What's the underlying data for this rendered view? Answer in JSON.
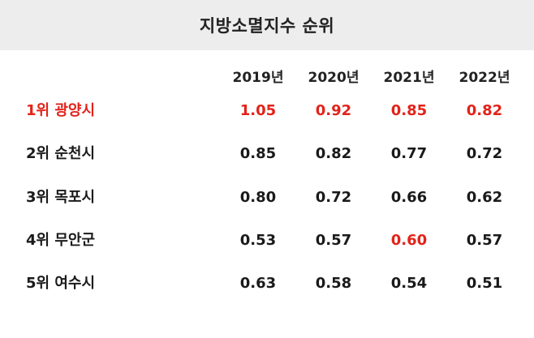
{
  "title": "지방소멸지수 순위",
  "colors": {
    "highlight": "#e2231a",
    "text": "#222222",
    "header_bg": "#ededed"
  },
  "columns": [
    "2019년",
    "2020년",
    "2021년",
    "2022년"
  ],
  "rows": [
    {
      "label": "1위 광양시",
      "values": [
        "1.05",
        "0.92",
        "0.85",
        "0.82"
      ],
      "label_highlight": true,
      "highlight": [
        true,
        true,
        true,
        true
      ]
    },
    {
      "label": "2위 순천시",
      "values": [
        "0.85",
        "0.82",
        "0.77",
        "0.72"
      ],
      "label_highlight": false,
      "highlight": [
        false,
        false,
        false,
        false
      ]
    },
    {
      "label": "3위 목포시",
      "values": [
        "0.80",
        "0.72",
        "0.66",
        "0.62"
      ],
      "label_highlight": false,
      "highlight": [
        false,
        false,
        false,
        false
      ]
    },
    {
      "label": "4위 무안군",
      "values": [
        "0.53",
        "0.57",
        "0.60",
        "0.57"
      ],
      "label_highlight": false,
      "highlight": [
        false,
        false,
        true,
        false
      ]
    },
    {
      "label": "5위 여수시",
      "values": [
        "0.63",
        "0.58",
        "0.54",
        "0.51"
      ],
      "label_highlight": false,
      "highlight": [
        false,
        false,
        false,
        false
      ]
    }
  ]
}
